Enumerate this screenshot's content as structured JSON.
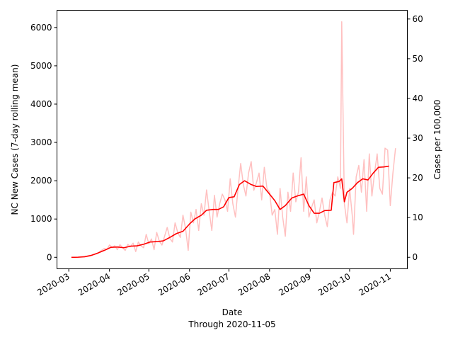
{
  "chart_data": {
    "type": "line",
    "xlabel": "Date",
    "xlabel_sub": "Through 2020-11-05",
    "ylabel_left": "NC New Cases (7-day rolling mean)",
    "ylabel_right": "Cases per 100,000",
    "xlim": [
      "2020-02-21",
      "2020-11-14"
    ],
    "ylim_left": [
      -300,
      6450
    ],
    "ylim_right": [
      -2.9,
      62.2
    ],
    "x_ticks": [
      "2020-03",
      "2020-04",
      "2020-05",
      "2020-06",
      "2020-07",
      "2020-08",
      "2020-09",
      "2020-10",
      "2020-11"
    ],
    "y_ticks_left": [
      0,
      1000,
      2000,
      3000,
      4000,
      5000,
      6000
    ],
    "y_ticks_right": [
      0,
      10,
      20,
      30,
      40,
      50,
      60
    ],
    "grid": false,
    "legend": "none",
    "series": [
      {
        "role": "daily",
        "color": "#ffc0c0",
        "points": [
          [
            "2020-03-03",
            1
          ],
          [
            "2020-03-07",
            2
          ],
          [
            "2020-03-10",
            5
          ],
          [
            "2020-03-13",
            10
          ],
          [
            "2020-03-16",
            25
          ],
          [
            "2020-03-19",
            60
          ],
          [
            "2020-03-22",
            90
          ],
          [
            "2020-03-24",
            130
          ],
          [
            "2020-03-26",
            180
          ],
          [
            "2020-03-28",
            230
          ],
          [
            "2020-03-30",
            200
          ],
          [
            "2020-04-01",
            320
          ],
          [
            "2020-04-03",
            260
          ],
          [
            "2020-04-05",
            300
          ],
          [
            "2020-04-07",
            200
          ],
          [
            "2020-04-09",
            330
          ],
          [
            "2020-04-11",
            250
          ],
          [
            "2020-04-13",
            180
          ],
          [
            "2020-04-15",
            340
          ],
          [
            "2020-04-17",
            280
          ],
          [
            "2020-04-19",
            370
          ],
          [
            "2020-04-21",
            150
          ],
          [
            "2020-04-23",
            400
          ],
          [
            "2020-04-25",
            300
          ],
          [
            "2020-04-27",
            250
          ],
          [
            "2020-04-29",
            600
          ],
          [
            "2020-05-01",
            350
          ],
          [
            "2020-05-03",
            480
          ],
          [
            "2020-05-05",
            200
          ],
          [
            "2020-05-07",
            650
          ],
          [
            "2020-05-09",
            420
          ],
          [
            "2020-05-11",
            320
          ],
          [
            "2020-05-13",
            550
          ],
          [
            "2020-05-15",
            780
          ],
          [
            "2020-05-17",
            500
          ],
          [
            "2020-05-19",
            400
          ],
          [
            "2020-05-21",
            900
          ],
          [
            "2020-05-23",
            650
          ],
          [
            "2020-05-25",
            520
          ],
          [
            "2020-05-27",
            1100
          ],
          [
            "2020-05-29",
            750
          ],
          [
            "2020-05-31",
            180
          ],
          [
            "2020-06-02",
            1180
          ],
          [
            "2020-06-04",
            900
          ],
          [
            "2020-06-06",
            1250
          ],
          [
            "2020-06-08",
            700
          ],
          [
            "2020-06-10",
            1400
          ],
          [
            "2020-06-12",
            1100
          ],
          [
            "2020-06-14",
            1760
          ],
          [
            "2020-06-16",
            1200
          ],
          [
            "2020-06-18",
            700
          ],
          [
            "2020-06-20",
            1620
          ],
          [
            "2020-06-22",
            1050
          ],
          [
            "2020-06-24",
            1400
          ],
          [
            "2020-06-26",
            1650
          ],
          [
            "2020-06-28",
            1500
          ],
          [
            "2020-06-30",
            1200
          ],
          [
            "2020-07-02",
            2050
          ],
          [
            "2020-07-04",
            1400
          ],
          [
            "2020-07-06",
            1050
          ],
          [
            "2020-07-08",
            1800
          ],
          [
            "2020-07-10",
            2450
          ],
          [
            "2020-07-12",
            1900
          ],
          [
            "2020-07-14",
            1600
          ],
          [
            "2020-07-16",
            2200
          ],
          [
            "2020-07-18",
            2500
          ],
          [
            "2020-07-20",
            1750
          ],
          [
            "2020-07-22",
            1950
          ],
          [
            "2020-07-24",
            2200
          ],
          [
            "2020-07-26",
            1500
          ],
          [
            "2020-07-28",
            2350
          ],
          [
            "2020-07-30",
            1800
          ],
          [
            "2020-08-01",
            1700
          ],
          [
            "2020-08-03",
            1100
          ],
          [
            "2020-08-05",
            1250
          ],
          [
            "2020-08-07",
            600
          ],
          [
            "2020-08-09",
            1800
          ],
          [
            "2020-08-11",
            1050
          ],
          [
            "2020-08-13",
            550
          ],
          [
            "2020-08-15",
            1700
          ],
          [
            "2020-08-17",
            1200
          ],
          [
            "2020-08-19",
            2200
          ],
          [
            "2020-08-21",
            1450
          ],
          [
            "2020-08-23",
            1700
          ],
          [
            "2020-08-25",
            2600
          ],
          [
            "2020-08-27",
            1200
          ],
          [
            "2020-08-29",
            2100
          ],
          [
            "2020-08-31",
            1050
          ],
          [
            "2020-09-02",
            1300
          ],
          [
            "2020-09-04",
            1500
          ],
          [
            "2020-09-06",
            900
          ],
          [
            "2020-09-08",
            1200
          ],
          [
            "2020-09-10",
            1550
          ],
          [
            "2020-09-12",
            1100
          ],
          [
            "2020-09-14",
            800
          ],
          [
            "2020-09-16",
            1500
          ],
          [
            "2020-09-18",
            1700
          ],
          [
            "2020-09-20",
            1600
          ],
          [
            "2020-09-22",
            2100
          ],
          [
            "2020-09-24",
            1800
          ],
          [
            "2020-09-25",
            6150
          ],
          [
            "2020-09-27",
            1400
          ],
          [
            "2020-09-29",
            900
          ],
          [
            "2020-10-01",
            1800
          ],
          [
            "2020-10-03",
            1100
          ],
          [
            "2020-10-04",
            600
          ],
          [
            "2020-10-06",
            2100
          ],
          [
            "2020-10-08",
            2400
          ],
          [
            "2020-10-10",
            1700
          ],
          [
            "2020-10-12",
            2550
          ],
          [
            "2020-10-14",
            1200
          ],
          [
            "2020-10-16",
            2700
          ],
          [
            "2020-10-18",
            1600
          ],
          [
            "2020-10-20",
            2200
          ],
          [
            "2020-10-22",
            2700
          ],
          [
            "2020-10-24",
            1800
          ],
          [
            "2020-10-26",
            1650
          ],
          [
            "2020-10-28",
            2850
          ],
          [
            "2020-10-30",
            2800
          ],
          [
            "2020-11-01",
            1350
          ],
          [
            "2020-11-03",
            2200
          ],
          [
            "2020-11-05",
            2850
          ]
        ]
      },
      {
        "role": "rolling_mean",
        "color": "#ff0000",
        "points": [
          [
            "2020-03-03",
            0
          ],
          [
            "2020-03-08",
            3
          ],
          [
            "2020-03-13",
            15
          ],
          [
            "2020-03-18",
            50
          ],
          [
            "2020-03-23",
            110
          ],
          [
            "2020-03-28",
            180
          ],
          [
            "2020-04-02",
            260
          ],
          [
            "2020-04-07",
            270
          ],
          [
            "2020-04-12",
            250
          ],
          [
            "2020-04-17",
            290
          ],
          [
            "2020-04-22",
            300
          ],
          [
            "2020-04-27",
            340
          ],
          [
            "2020-05-02",
            400
          ],
          [
            "2020-05-07",
            410
          ],
          [
            "2020-05-12",
            430
          ],
          [
            "2020-05-17",
            520
          ],
          [
            "2020-05-22",
            620
          ],
          [
            "2020-05-27",
            680
          ],
          [
            "2020-06-01",
            870
          ],
          [
            "2020-06-05",
            1000
          ],
          [
            "2020-06-10",
            1100
          ],
          [
            "2020-06-14",
            1230
          ],
          [
            "2020-06-19",
            1250
          ],
          [
            "2020-06-23",
            1250
          ],
          [
            "2020-06-27",
            1320
          ],
          [
            "2020-07-01",
            1560
          ],
          [
            "2020-07-05",
            1580
          ],
          [
            "2020-07-09",
            1900
          ],
          [
            "2020-07-13",
            2000
          ],
          [
            "2020-07-18",
            1900
          ],
          [
            "2020-07-22",
            1850
          ],
          [
            "2020-07-27",
            1860
          ],
          [
            "2020-08-01",
            1650
          ],
          [
            "2020-08-05",
            1480
          ],
          [
            "2020-08-09",
            1250
          ],
          [
            "2020-08-13",
            1350
          ],
          [
            "2020-08-18",
            1550
          ],
          [
            "2020-08-22",
            1600
          ],
          [
            "2020-08-27",
            1650
          ],
          [
            "2020-08-31",
            1350
          ],
          [
            "2020-09-04",
            1150
          ],
          [
            "2020-09-08",
            1150
          ],
          [
            "2020-09-12",
            1220
          ],
          [
            "2020-09-17",
            1230
          ],
          [
            "2020-09-19",
            1950
          ],
          [
            "2020-09-23",
            1980
          ],
          [
            "2020-09-25",
            2050
          ],
          [
            "2020-09-27",
            1450
          ],
          [
            "2020-09-29",
            1700
          ],
          [
            "2020-10-03",
            1800
          ],
          [
            "2020-10-07",
            1950
          ],
          [
            "2020-10-11",
            2050
          ],
          [
            "2020-10-15",
            2020
          ],
          [
            "2020-10-19",
            2200
          ],
          [
            "2020-10-23",
            2350
          ],
          [
            "2020-10-27",
            2360
          ],
          [
            "2020-10-31",
            2380
          ]
        ]
      }
    ]
  }
}
